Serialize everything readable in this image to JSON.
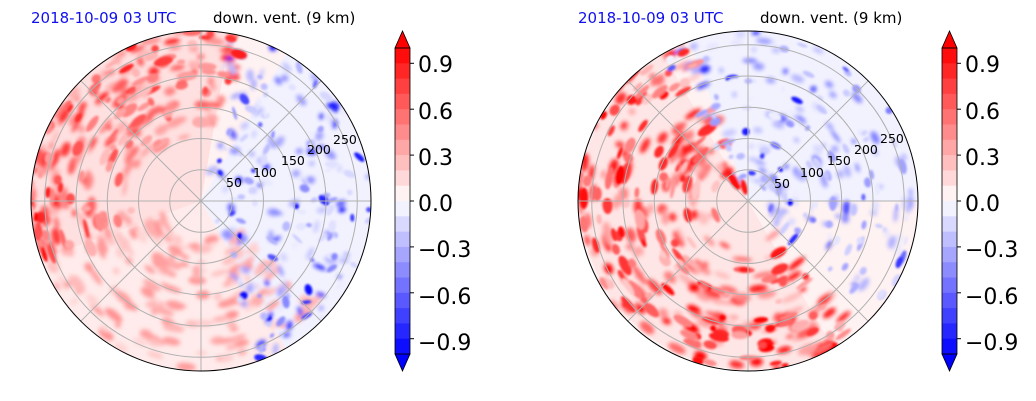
{
  "panels": [
    {
      "date_label": "2018-10-09 03 UTC",
      "variable_label": "down. vent. (9 km)",
      "ring_labels": [
        "50",
        "100",
        "150",
        "200",
        "250"
      ]
    },
    {
      "date_label": "2018-10-09 03 UTC",
      "variable_label": "down. vent. (9 km)",
      "ring_labels": [
        "50",
        "100",
        "150",
        "200",
        "250"
      ]
    }
  ],
  "chart_data": [
    {
      "type": "heatmap",
      "projection": "polar",
      "title": "2018-10-09 03 UTC   down. vent. (9 km)",
      "radial_ticks": [
        50,
        100,
        150,
        200,
        250
      ],
      "angular_gridlines_deg": [
        0,
        45,
        90,
        135,
        180,
        225,
        270,
        315
      ],
      "colorbar": {
        "ticks": [
          0.9,
          0.6,
          0.3,
          0.0,
          -0.3,
          -0.6,
          -0.9
        ],
        "tick_labels": [
          "0.9",
          "0.6",
          "0.3",
          "0.0",
          "−0.3",
          "−0.6",
          "−0.9"
        ],
        "range": [
          -1.0,
          1.0
        ],
        "extend": "both",
        "colormap": "bwr",
        "high_color": "#ff0000",
        "low_color": "#0000ff",
        "mid_color": "#ffffff"
      },
      "pattern": "positive (red) bands in north-west sector, negative (blue) streaks in east sector"
    },
    {
      "type": "heatmap",
      "projection": "polar",
      "title": "2018-10-09 03 UTC   down. vent. (9 km)",
      "radial_ticks": [
        50,
        100,
        150,
        200,
        250
      ],
      "angular_gridlines_deg": [
        0,
        45,
        90,
        135,
        180,
        225,
        270,
        315
      ],
      "colorbar": {
        "ticks": [
          0.9,
          0.6,
          0.3,
          0.0,
          -0.3,
          -0.6,
          -0.9
        ],
        "tick_labels": [
          "0.9",
          "0.6",
          "0.3",
          "0.0",
          "−0.3",
          "−0.6",
          "−0.9"
        ],
        "range": [
          -1.0,
          1.0
        ],
        "extend": "both",
        "colormap": "bwr",
        "high_color": "#ff0000",
        "low_color": "#0000ff",
        "mid_color": "#ffffff"
      },
      "pattern": "positive (red) spiral band in west and south sectors, negative (blue) streaks in north-east sector"
    }
  ]
}
